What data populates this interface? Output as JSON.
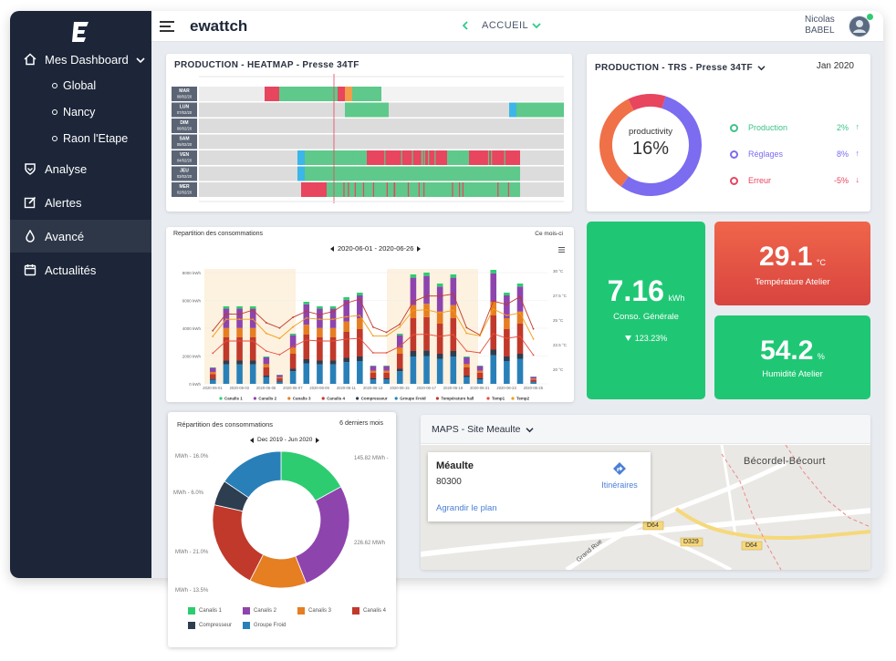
{
  "app": {
    "brand": "ewattch"
  },
  "sidebar": {
    "items": [
      {
        "label": "Mes Dashboard",
        "icon": "home-icon"
      },
      {
        "label": "Analyse",
        "icon": "shield-icon"
      },
      {
        "label": "Alertes",
        "icon": "edit-icon"
      },
      {
        "label": "Avancé",
        "icon": "drop-icon"
      },
      {
        "label": "Actualités",
        "icon": "calendar-icon"
      }
    ],
    "sub_items": [
      "Global",
      "Nancy",
      "Raon l'Etape"
    ]
  },
  "topbar": {
    "nav_label": "ACCUEIL",
    "user_first": "Nicolas",
    "user_last": "BABEL"
  },
  "heatmap": {
    "title": "PRODUCTION - HEATMAP - Presse 34TF",
    "rows": [
      {
        "day": "MAR",
        "date": "08/02/20"
      },
      {
        "day": "LUN",
        "date": "07/02/20"
      },
      {
        "day": "DIM",
        "date": "06/02/20"
      },
      {
        "day": "SAM",
        "date": "05/02/20"
      },
      {
        "day": "VEN",
        "date": "04/02/20"
      },
      {
        "day": "JEU",
        "date": "03/02/20"
      },
      {
        "day": "MER",
        "date": "02/02/20"
      }
    ]
  },
  "trs": {
    "title": "PRODUCTION - TRS - Presse 34TF",
    "period": "Jan 2020",
    "center_label": "productivity",
    "center_value": "16%",
    "legend": [
      {
        "label": "Production",
        "value": "2%",
        "color": "#3cc28a"
      },
      {
        "label": "Réglages",
        "value": "8%",
        "color": "#7b6cf0"
      },
      {
        "label": "Erreur",
        "value": "-5%",
        "color": "#e8455f"
      }
    ]
  },
  "consumption": {
    "title": "Repartition des consommations",
    "period_label": "Ce mois-ci",
    "range": "2020-06-01 - 2020-06-26",
    "y_left": [
      "8000 kWh",
      "6000 kWh",
      "4000 kWh",
      "2000 kWh",
      "0 kWh"
    ],
    "y_right": [
      "30 °C",
      "27.5 °C",
      "25 °C",
      "22.5 °C",
      "20 °C"
    ],
    "x_labels": [
      "2020-06-01",
      "2020-06-03",
      "2020-06-05",
      "2020-06-07",
      "2020-06-09",
      "2020-06-11",
      "2020-06-13",
      "2020-06-15",
      "2020-06-17",
      "2020-06-19",
      "2020-06-21",
      "2020-06-23",
      "2020-06-25"
    ],
    "legend": [
      {
        "label": "Canalis 1",
        "color": "#2ecc71"
      },
      {
        "label": "Canalis 2",
        "color": "#8e44ad"
      },
      {
        "label": "Canalis 3",
        "color": "#e67e22"
      },
      {
        "label": "Canalis 4",
        "color": "#c0392b"
      },
      {
        "label": "Compresseur",
        "color": "#2c3e50"
      },
      {
        "label": "Groupe Froid",
        "color": "#2980b9"
      },
      {
        "label": "Température hall",
        "color": "#c0392b"
      },
      {
        "label": "Temp1",
        "color": "#e74c3c"
      },
      {
        "label": "Temp2",
        "color": "#f39c12"
      }
    ]
  },
  "kpis": {
    "conso": {
      "value": "7.16",
      "unit": "kWh",
      "label": "Conso. Générale",
      "delta": "123.23%"
    },
    "temp": {
      "value": "29.1",
      "unit": "°C",
      "label": "Température Atelier"
    },
    "hum": {
      "value": "54.2",
      "unit": "%",
      "label": "Humidité Atelier"
    }
  },
  "donut2": {
    "title": "Répartition des consommations",
    "period_label": "6 derniers mois",
    "range": "Dec 2019 - Jun 2020",
    "labels_left": [
      "MWh - 16.0%",
      "MWh - 6.0%",
      "MWh - 21.0%",
      "MWh - 13.5%"
    ],
    "labels_right": [
      "145.82 MWh -",
      "226.62 MWh"
    ],
    "legend": [
      {
        "label": "Canalis 1",
        "color": "#2ecc71"
      },
      {
        "label": "Canalis 2",
        "color": "#8e44ad"
      },
      {
        "label": "Canalis 3",
        "color": "#e67e22"
      },
      {
        "label": "Canalis 4",
        "color": "#c0392b"
      },
      {
        "label": "Compresseur",
        "color": "#2c3e50"
      },
      {
        "label": "Groupe Froid",
        "color": "#2980b9"
      }
    ]
  },
  "map": {
    "title": "MAPS - Site Meaulte",
    "place": "Méaulte",
    "postcode": "80300",
    "directions": "Itinéraires",
    "enlarge": "Agrandir le plan",
    "town": "Bécordel-Bécourt",
    "roads": [
      "D64",
      "D329",
      "D64"
    ],
    "street": "Grand Rue"
  }
}
